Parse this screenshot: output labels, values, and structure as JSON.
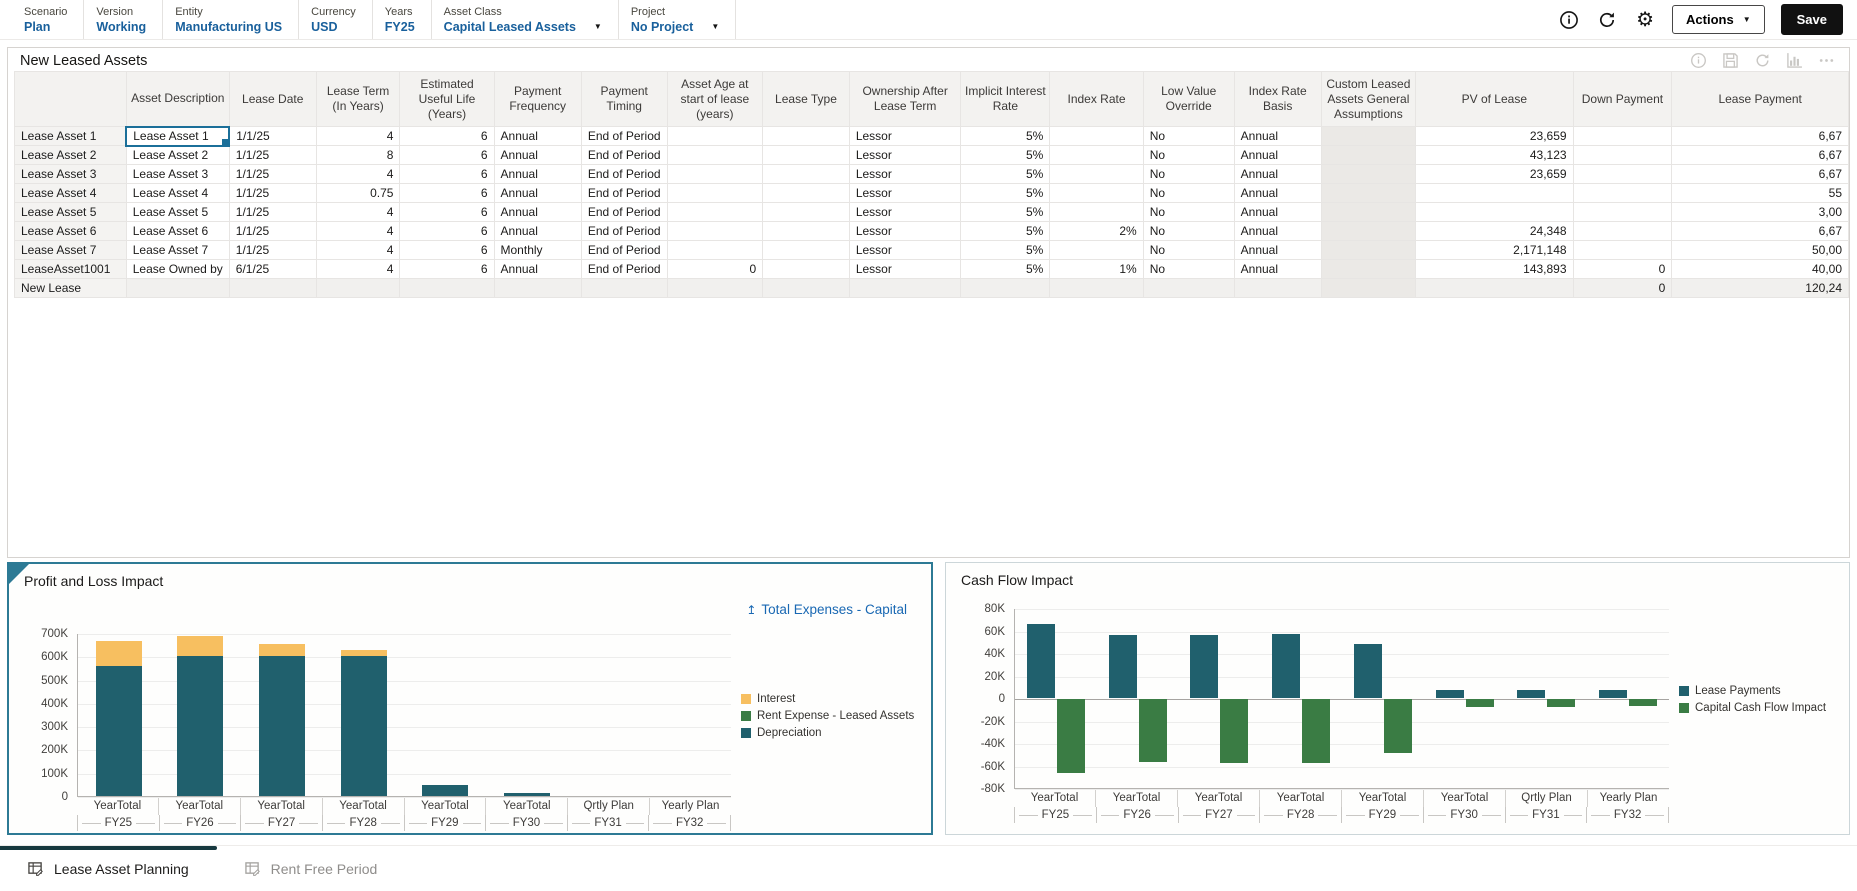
{
  "pov": {
    "items": [
      {
        "label": "Scenario",
        "value": "Plan",
        "dropdown": false
      },
      {
        "label": "Version",
        "value": "Working",
        "dropdown": false
      },
      {
        "label": "Entity",
        "value": "Manufacturing US",
        "dropdown": false
      },
      {
        "label": "Currency",
        "value": "USD",
        "dropdown": false
      },
      {
        "label": "Years",
        "value": "FY25",
        "dropdown": false
      },
      {
        "label": "Asset Class",
        "value": "Capital Leased Assets",
        "dropdown": true
      },
      {
        "label": "Project",
        "value": "No Project",
        "dropdown": true
      }
    ],
    "toolbar_icons": [
      "info-icon",
      "refresh-icon",
      "settings-icon"
    ],
    "actions_label": "Actions",
    "save_label": "Save"
  },
  "grid": {
    "title": "New Leased Assets",
    "toolbar_icons": [
      "info-icon",
      "save-icon",
      "refresh-icon",
      "chart-icon",
      "more-icon"
    ],
    "columns": [
      "Asset Description",
      "Lease Date",
      "Lease Term (In Years)",
      "Estimated Useful Life (Years)",
      "Payment Frequency",
      "Payment Timing",
      "Asset Age at start of lease (years)",
      "Lease Type",
      "Ownership After Lease Term",
      "Implicit Interest Rate",
      "Index Rate",
      "Low Value Override",
      "Index Rate Basis",
      "Custom Leased Assets General Assumptions",
      "PV of Lease",
      "Down Payment",
      "Lease Payment"
    ],
    "align": [
      "left",
      "left",
      "right",
      "right",
      "left",
      "left",
      "right",
      "left",
      "left",
      "right",
      "right",
      "left",
      "left",
      "left",
      "right",
      "right",
      "right"
    ],
    "readonly_columns": [
      13
    ],
    "selected": {
      "row": 0,
      "col": 0
    },
    "rows": [
      {
        "header": "Lease Asset 1",
        "cells": [
          "Lease Asset 1",
          "1/1/25",
          "4",
          "6",
          "Annual",
          "End of Period",
          "",
          "",
          "Lessor",
          "5%",
          "",
          "No",
          "Annual",
          "",
          "23,659",
          "",
          "6,67"
        ]
      },
      {
        "header": "Lease Asset 2",
        "cells": [
          "Lease Asset 2",
          "1/1/25",
          "8",
          "6",
          "Annual",
          "End of Period",
          "",
          "",
          "Lessor",
          "5%",
          "",
          "No",
          "Annual",
          "",
          "43,123",
          "",
          "6,67"
        ]
      },
      {
        "header": "Lease Asset 3",
        "cells": [
          "Lease Asset 3",
          "1/1/25",
          "4",
          "6",
          "Annual",
          "End of Period",
          "",
          "",
          "Lessor",
          "5%",
          "",
          "No",
          "Annual",
          "",
          "23,659",
          "",
          "6,67"
        ]
      },
      {
        "header": "Lease Asset 4",
        "cells": [
          "Lease Asset 4",
          "1/1/25",
          "0.75",
          "6",
          "Annual",
          "End of Period",
          "",
          "",
          "Lessor",
          "5%",
          "",
          "No",
          "Annual",
          "",
          "",
          "",
          "55"
        ]
      },
      {
        "header": "Lease Asset 5",
        "cells": [
          "Lease Asset 5",
          "1/1/25",
          "4",
          "6",
          "Annual",
          "End of Period",
          "",
          "",
          "Lessor",
          "5%",
          "",
          "No",
          "Annual",
          "",
          "",
          "",
          "3,00"
        ]
      },
      {
        "header": "Lease Asset 6",
        "cells": [
          "Lease Asset 6",
          "1/1/25",
          "4",
          "6",
          "Annual",
          "End of Period",
          "",
          "",
          "Lessor",
          "5%",
          "2%",
          "No",
          "Annual",
          "",
          "24,348",
          "",
          "6,67"
        ]
      },
      {
        "header": "Lease Asset 7",
        "cells": [
          "Lease Asset 7",
          "1/1/25",
          "4",
          "6",
          "Monthly",
          "End of Period",
          "",
          "",
          "Lessor",
          "5%",
          "",
          "No",
          "Annual",
          "",
          "2,171,148",
          "",
          "50,00"
        ]
      },
      {
        "header": "LeaseAsset1001",
        "cells": [
          "Lease Owned by",
          "6/1/25",
          "4",
          "6",
          "Annual",
          "End of Period",
          "0",
          "",
          "Lessor",
          "5%",
          "1%",
          "No",
          "Annual",
          "",
          "143,893",
          "0",
          "40,00"
        ]
      },
      {
        "header": "New Lease",
        "cells": [
          "",
          "",
          "",
          "",
          "",
          "",
          "",
          "",
          "",
          "",
          "",
          "",
          "",
          "",
          "",
          "0",
          "120,24"
        ]
      }
    ]
  },
  "chart_data": [
    {
      "type": "bar",
      "stacked": true,
      "title": "Profit and Loss Impact",
      "link": "Total Expenses - Capital",
      "group_labels": [
        "YearTotal",
        "YearTotal",
        "YearTotal",
        "YearTotal",
        "YearTotal",
        "YearTotal",
        "Qrtly Plan",
        "Yearly Plan"
      ],
      "categories": [
        "FY25",
        "FY26",
        "FY27",
        "FY28",
        "FY29",
        "FY30",
        "FY31",
        "FY32"
      ],
      "series": [
        {
          "name": "Interest",
          "color": "#F7BF60",
          "values": [
            105000,
            88000,
            55000,
            25000,
            0,
            0,
            0,
            0
          ]
        },
        {
          "name": "Rent Expense - Leased Assets",
          "color": "#3A7C44",
          "values": [
            0,
            0,
            0,
            0,
            0,
            0,
            0,
            0
          ]
        },
        {
          "name": "Depreciation",
          "color": "#20606D",
          "values": [
            560000,
            600000,
            600000,
            600000,
            47000,
            12000,
            0,
            0
          ]
        }
      ],
      "ylim": [
        0,
        700000
      ],
      "yticks": [
        "700K",
        "600K",
        "500K",
        "400K",
        "300K",
        "200K",
        "100K",
        "0"
      ],
      "legend_position": "right",
      "grid": true
    },
    {
      "type": "bar",
      "stacked": false,
      "title": "Cash Flow Impact",
      "group_labels": [
        "YearTotal",
        "YearTotal",
        "YearTotal",
        "YearTotal",
        "YearTotal",
        "YearTotal",
        "Qrtly Plan",
        "Yearly Plan"
      ],
      "categories": [
        "FY25",
        "FY26",
        "FY27",
        "FY28",
        "FY29",
        "FY30",
        "FY31",
        "FY32"
      ],
      "series": [
        {
          "name": "Lease Payments",
          "color": "#20606D",
          "values": [
            66000,
            56000,
            56000,
            57000,
            48000,
            7000,
            7000,
            7000
          ]
        },
        {
          "name": "Capital Cash Flow Impact",
          "color": "#3A7C44",
          "values": [
            -66000,
            -56000,
            -57000,
            -57000,
            -48000,
            -7000,
            -7000,
            -6000
          ]
        }
      ],
      "ylim": [
        -80000,
        80000
      ],
      "yticks": [
        "80K",
        "60K",
        "40K",
        "20K",
        "0",
        "-20K",
        "-40K",
        "-60K",
        "-80K"
      ],
      "legend_position": "right",
      "grid": true
    }
  ],
  "tabs": [
    {
      "label": "Lease Asset Planning",
      "active": true
    },
    {
      "label": "Rent Free Period",
      "active": false
    }
  ]
}
